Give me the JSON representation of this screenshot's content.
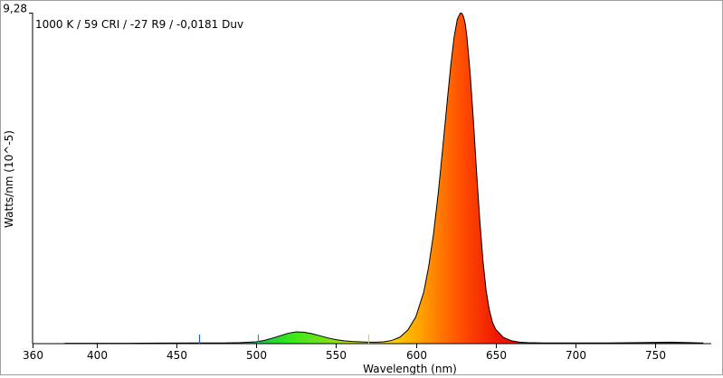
{
  "chart_data": {
    "type": "area",
    "annotation": "1000 K / 59 CRI / -27 R9 / -0,0181 Duv",
    "xlabel": "Wavelength (nm)",
    "ylabel": "Watts/nm (10^-5)",
    "xlim": [
      360,
      785
    ],
    "ylim": [
      0,
      9.28
    ],
    "x_ticks": [
      360,
      400,
      450,
      500,
      550,
      600,
      650,
      700,
      750
    ],
    "y_ticks": [
      {
        "value": 9.28,
        "label": "9,28"
      }
    ],
    "grid": false,
    "series": [
      {
        "x": [
          380,
          400,
          420,
          440,
          460,
          470,
          480,
          490,
          500,
          505,
          510,
          515,
          520,
          525,
          530,
          535,
          540,
          545,
          550,
          555,
          560,
          565,
          570,
          575,
          580,
          585,
          590,
          595,
          600,
          605,
          608,
          611,
          614,
          617,
          620,
          622,
          624,
          626,
          628,
          629,
          630,
          631,
          632,
          634,
          636,
          638,
          640,
          642,
          644,
          646,
          648,
          650,
          655,
          660,
          665,
          670,
          680,
          690,
          700,
          720,
          740,
          760,
          780
        ],
        "y": [
          0.01,
          0.01,
          0.01,
          0.015,
          0.02,
          0.02,
          0.02,
          0.03,
          0.05,
          0.09,
          0.15,
          0.22,
          0.29,
          0.33,
          0.32,
          0.28,
          0.22,
          0.16,
          0.11,
          0.08,
          0.06,
          0.05,
          0.04,
          0.04,
          0.05,
          0.09,
          0.18,
          0.38,
          0.75,
          1.45,
          2.15,
          3.05,
          4.2,
          5.55,
          6.95,
          7.85,
          8.6,
          9.1,
          9.28,
          9.25,
          9.15,
          8.95,
          8.6,
          7.6,
          6.3,
          4.85,
          3.5,
          2.35,
          1.5,
          0.95,
          0.6,
          0.4,
          0.17,
          0.08,
          0.04,
          0.03,
          0.02,
          0.02,
          0.02,
          0.02,
          0.03,
          0.04,
          0.02
        ]
      }
    ],
    "markers": [
      {
        "x": 464,
        "color": "#1f5fd0"
      },
      {
        "x": 501,
        "color": "#1fa84a"
      },
      {
        "x": 570,
        "color": "#e6d21a"
      }
    ]
  }
}
